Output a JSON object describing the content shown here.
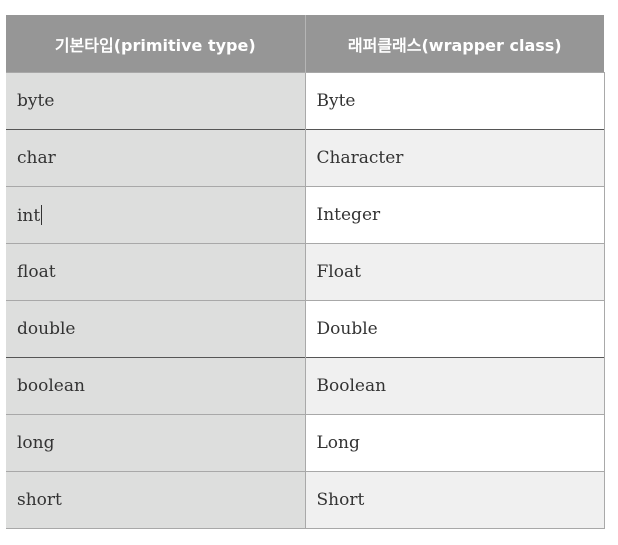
{
  "table": {
    "headers": {
      "primitive": "기본타입(primitive type)",
      "wrapper": "래퍼클래스(wrapper class)"
    },
    "rows": [
      {
        "primitive": "byte",
        "wrapper": "Byte"
      },
      {
        "primitive": "char",
        "wrapper": "Character"
      },
      {
        "primitive": "int",
        "wrapper": "Integer"
      },
      {
        "primitive": "float",
        "wrapper": "Float"
      },
      {
        "primitive": "double",
        "wrapper": "Double"
      },
      {
        "primitive": "boolean",
        "wrapper": "Boolean"
      },
      {
        "primitive": "long",
        "wrapper": "Long"
      },
      {
        "primitive": "short",
        "wrapper": "Short"
      }
    ]
  },
  "colors": {
    "header_bg": "#969696",
    "header_text": "#ffffff",
    "primitive_col_bg": "#dddedd",
    "wrapper_row_alt_bg": "#f0f0f0"
  }
}
